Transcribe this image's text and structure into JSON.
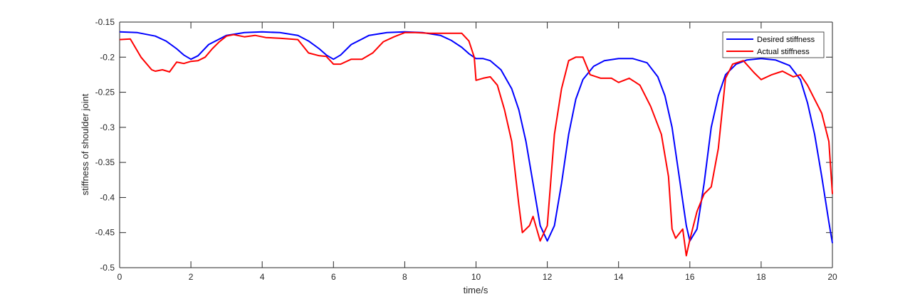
{
  "chart_data": {
    "type": "line",
    "title": "",
    "xlabel": "time/s",
    "ylabel": "stiffness of shoulder joint",
    "xlim": [
      0,
      20
    ],
    "ylim": [
      -0.5,
      -0.15
    ],
    "xticks": [
      0,
      2,
      4,
      6,
      8,
      10,
      12,
      14,
      16,
      18,
      20
    ],
    "xtick_labels": [
      "0",
      "2",
      "4",
      "6",
      "8",
      "10",
      "12",
      "14",
      "16",
      "18",
      "20"
    ],
    "yticks": [
      -0.5,
      -0.45,
      -0.4,
      -0.35,
      -0.3,
      -0.25,
      -0.2,
      -0.15
    ],
    "ytick_labels": [
      "-0.5",
      "-0.45",
      "-0.4",
      "-0.35",
      "-0.3",
      "-0.25",
      "-0.2",
      "-0.15"
    ],
    "grid": false,
    "legend_position": "top-right",
    "series": [
      {
        "name": "Desired stiffness",
        "color": "#0000ff",
        "x": [
          0,
          0.5,
          1,
          1.3,
          1.6,
          1.8,
          2,
          2.2,
          2.5,
          3,
          3.5,
          4,
          4.5,
          5,
          5.3,
          5.6,
          5.8,
          6,
          6.2,
          6.5,
          7,
          7.5,
          8,
          8.5,
          9,
          9.3,
          9.6,
          9.8,
          10,
          10.2,
          10.4,
          10.7,
          11,
          11.2,
          11.4,
          11.6,
          11.8,
          12,
          12.2,
          12.4,
          12.6,
          12.8,
          13,
          13.3,
          13.6,
          14,
          14.4,
          14.8,
          15.1,
          15.3,
          15.5,
          15.7,
          15.9,
          16,
          16.2,
          16.4,
          16.6,
          16.8,
          17,
          17.3,
          17.6,
          18,
          18.4,
          18.8,
          19.1,
          19.3,
          19.5,
          19.7,
          19.9,
          20
        ],
        "y": [
          -0.164,
          -0.165,
          -0.17,
          -0.177,
          -0.188,
          -0.197,
          -0.203,
          -0.198,
          -0.182,
          -0.169,
          -0.165,
          -0.164,
          -0.165,
          -0.169,
          -0.177,
          -0.188,
          -0.197,
          -0.203,
          -0.197,
          -0.182,
          -0.169,
          -0.165,
          -0.164,
          -0.165,
          -0.169,
          -0.176,
          -0.186,
          -0.195,
          -0.202,
          -0.202,
          -0.205,
          -0.218,
          -0.245,
          -0.275,
          -0.32,
          -0.38,
          -0.44,
          -0.462,
          -0.44,
          -0.38,
          -0.31,
          -0.26,
          -0.232,
          -0.213,
          -0.205,
          -0.202,
          -0.202,
          -0.208,
          -0.228,
          -0.255,
          -0.3,
          -0.37,
          -0.44,
          -0.462,
          -0.445,
          -0.38,
          -0.3,
          -0.255,
          -0.225,
          -0.21,
          -0.204,
          -0.202,
          -0.204,
          -0.212,
          -0.232,
          -0.265,
          -0.31,
          -0.37,
          -0.435,
          -0.465
        ]
      },
      {
        "name": "Actual stiffness",
        "color": "#ff0000",
        "x": [
          0,
          0.3,
          0.6,
          0.9,
          1,
          1.2,
          1.4,
          1.6,
          1.8,
          2,
          2.2,
          2.4,
          2.6,
          2.8,
          3,
          3.2,
          3.5,
          3.8,
          4.1,
          4.5,
          5,
          5.3,
          5.6,
          5.8,
          6,
          6.2,
          6.5,
          6.8,
          7.1,
          7.4,
          7.7,
          8,
          8.3,
          8.7,
          9,
          9.3,
          9.6,
          9.8,
          9.95,
          10,
          10.2,
          10.4,
          10.6,
          10.8,
          11,
          11.2,
          11.3,
          11.5,
          11.6,
          11.8,
          12,
          12.2,
          12.4,
          12.6,
          12.8,
          13,
          13.2,
          13.5,
          13.8,
          14,
          14.3,
          14.6,
          14.9,
          15.2,
          15.4,
          15.5,
          15.6,
          15.8,
          15.9,
          16,
          16.2,
          16.4,
          16.6,
          16.8,
          17,
          17.2,
          17.5,
          17.8,
          18,
          18.3,
          18.6,
          18.9,
          19.1,
          19.3,
          19.5,
          19.7,
          19.9,
          20
        ],
        "y": [
          -0.175,
          -0.174,
          -0.2,
          -0.218,
          -0.22,
          -0.218,
          -0.221,
          -0.207,
          -0.209,
          -0.206,
          -0.205,
          -0.2,
          -0.188,
          -0.178,
          -0.17,
          -0.168,
          -0.171,
          -0.169,
          -0.172,
          -0.173,
          -0.175,
          -0.194,
          -0.198,
          -0.199,
          -0.21,
          -0.21,
          -0.203,
          -0.203,
          -0.194,
          -0.178,
          -0.171,
          -0.165,
          -0.165,
          -0.166,
          -0.166,
          -0.166,
          -0.166,
          -0.177,
          -0.2,
          -0.233,
          -0.23,
          -0.228,
          -0.24,
          -0.275,
          -0.32,
          -0.41,
          -0.45,
          -0.44,
          -0.427,
          -0.462,
          -0.44,
          -0.31,
          -0.245,
          -0.205,
          -0.2,
          -0.2,
          -0.225,
          -0.23,
          -0.23,
          -0.236,
          -0.23,
          -0.24,
          -0.27,
          -0.31,
          -0.37,
          -0.445,
          -0.458,
          -0.445,
          -0.483,
          -0.46,
          -0.42,
          -0.395,
          -0.385,
          -0.33,
          -0.23,
          -0.21,
          -0.205,
          -0.222,
          -0.232,
          -0.225,
          -0.22,
          -0.228,
          -0.225,
          -0.24,
          -0.26,
          -0.28,
          -0.32,
          -0.395
        ]
      }
    ]
  }
}
